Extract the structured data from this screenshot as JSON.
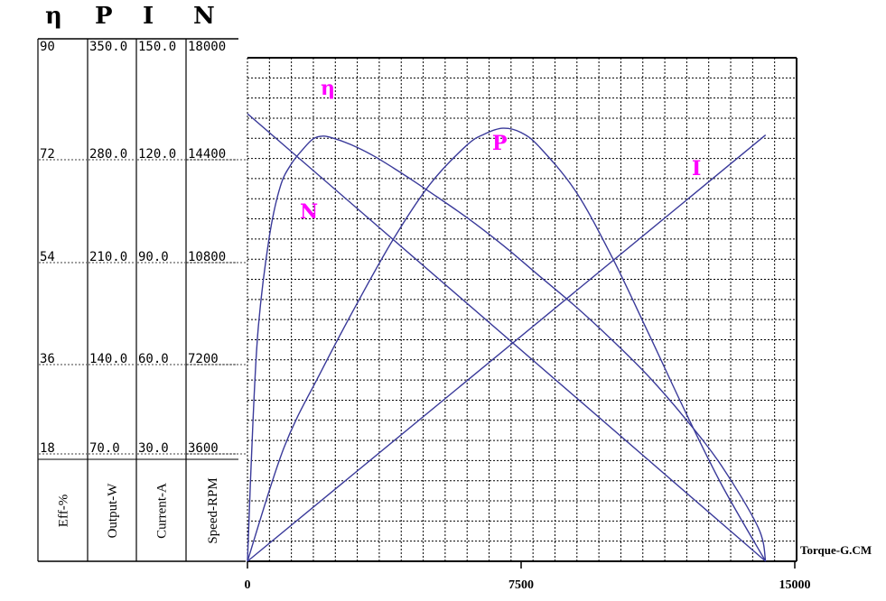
{
  "chart_data": {
    "type": "line",
    "xlabel": "Torque-G.CM",
    "x_ticks": [
      "0",
      "7500",
      "15000"
    ],
    "xlim": [
      0,
      15000
    ],
    "axes": [
      {
        "symbol": "η",
        "unit": "Eff-%",
        "ticks": [
          "18",
          "36",
          "54",
          "72",
          "90"
        ],
        "max": 90
      },
      {
        "symbol": "P",
        "unit": "Output-W",
        "ticks": [
          "70.0",
          "140.0",
          "210.0",
          "280.0",
          "350.0"
        ],
        "max": 350
      },
      {
        "symbol": "I",
        "unit": "Current-A",
        "ticks": [
          "30.0",
          "60.0",
          "90.0",
          "120.0",
          "150.0"
        ],
        "max": 150
      },
      {
        "symbol": "N",
        "unit": "Speed-RPM",
        "ticks": [
          "3600",
          "7200",
          "10800",
          "14400",
          "18000"
        ],
        "max": 18000
      }
    ],
    "series": [
      {
        "name": "η",
        "axis": 0,
        "color": "#3a3a9a",
        "x": [
          0,
          150,
          300,
          600,
          900,
          1200,
          1500,
          1800,
          2100,
          2500,
          3000,
          3500,
          4000,
          4500,
          5000,
          6000,
          7000,
          8000,
          9000,
          10000,
          11000,
          12000,
          13000,
          14000,
          14200
        ],
        "y": [
          0,
          25,
          42,
          58,
          67,
          71,
          73.5,
          75.5,
          76,
          75.3,
          74,
          72.3,
          70.3,
          68.2,
          66,
          61.5,
          56.5,
          51,
          45.5,
          39.5,
          33,
          25.5,
          17,
          6,
          0
        ]
      },
      {
        "name": "P",
        "axis": 1,
        "color": "#3a3a9a",
        "x": [
          0,
          1000,
          2000,
          3000,
          4000,
          5000,
          6000,
          6500,
          7000,
          7500,
          8000,
          9000,
          10000,
          11000,
          12000,
          13000,
          14200
        ],
        "y": [
          0,
          79,
          131,
          179,
          224,
          262,
          289,
          297,
          301,
          298,
          288,
          257,
          211,
          158,
          104,
          53,
          0
        ]
      },
      {
        "name": "I",
        "axis": 2,
        "color": "#3a3a9a",
        "x": [
          0,
          14200
        ],
        "y": [
          0,
          127
        ]
      },
      {
        "name": "N",
        "axis": 3,
        "color": "#3a3a9a",
        "x": [
          0,
          14200
        ],
        "y": [
          16000,
          0
        ]
      }
    ],
    "grid": true,
    "legend": "curve labels"
  }
}
